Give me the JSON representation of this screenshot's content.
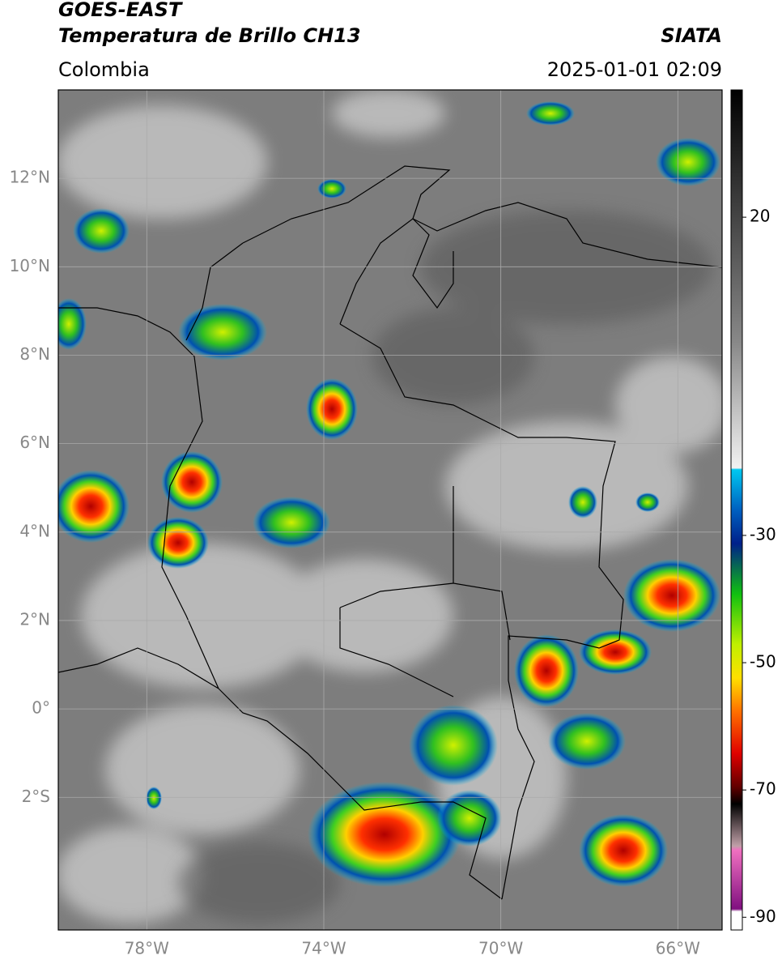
{
  "header": {
    "satellite": "GOES-EAST",
    "product": "Temperatura de Brillo CH13",
    "region": "Colombia",
    "source": "SIATA",
    "datetime": "2025-01-01 02:09"
  },
  "map": {
    "lon_range": [
      -80,
      -65
    ],
    "lat_range": [
      -5,
      14
    ],
    "lat_ticks": [
      {
        "value": 12,
        "label": "12°N"
      },
      {
        "value": 10,
        "label": "10°N"
      },
      {
        "value": 8,
        "label": "8°N"
      },
      {
        "value": 6,
        "label": "6°N"
      },
      {
        "value": 4,
        "label": "4°N"
      },
      {
        "value": 2,
        "label": "2°N"
      },
      {
        "value": 0,
        "label": "0°"
      },
      {
        "value": -2,
        "label": "2°S"
      }
    ],
    "lon_ticks": [
      {
        "value": -78,
        "label": "78°W"
      },
      {
        "value": -74,
        "label": "74°W"
      },
      {
        "value": -70,
        "label": "70°W"
      },
      {
        "value": -66,
        "label": "66°W"
      }
    ]
  },
  "colorbar": {
    "range": [
      -92,
      40
    ],
    "ticks": [
      20,
      -30,
      -50,
      -70,
      -90
    ]
  }
}
